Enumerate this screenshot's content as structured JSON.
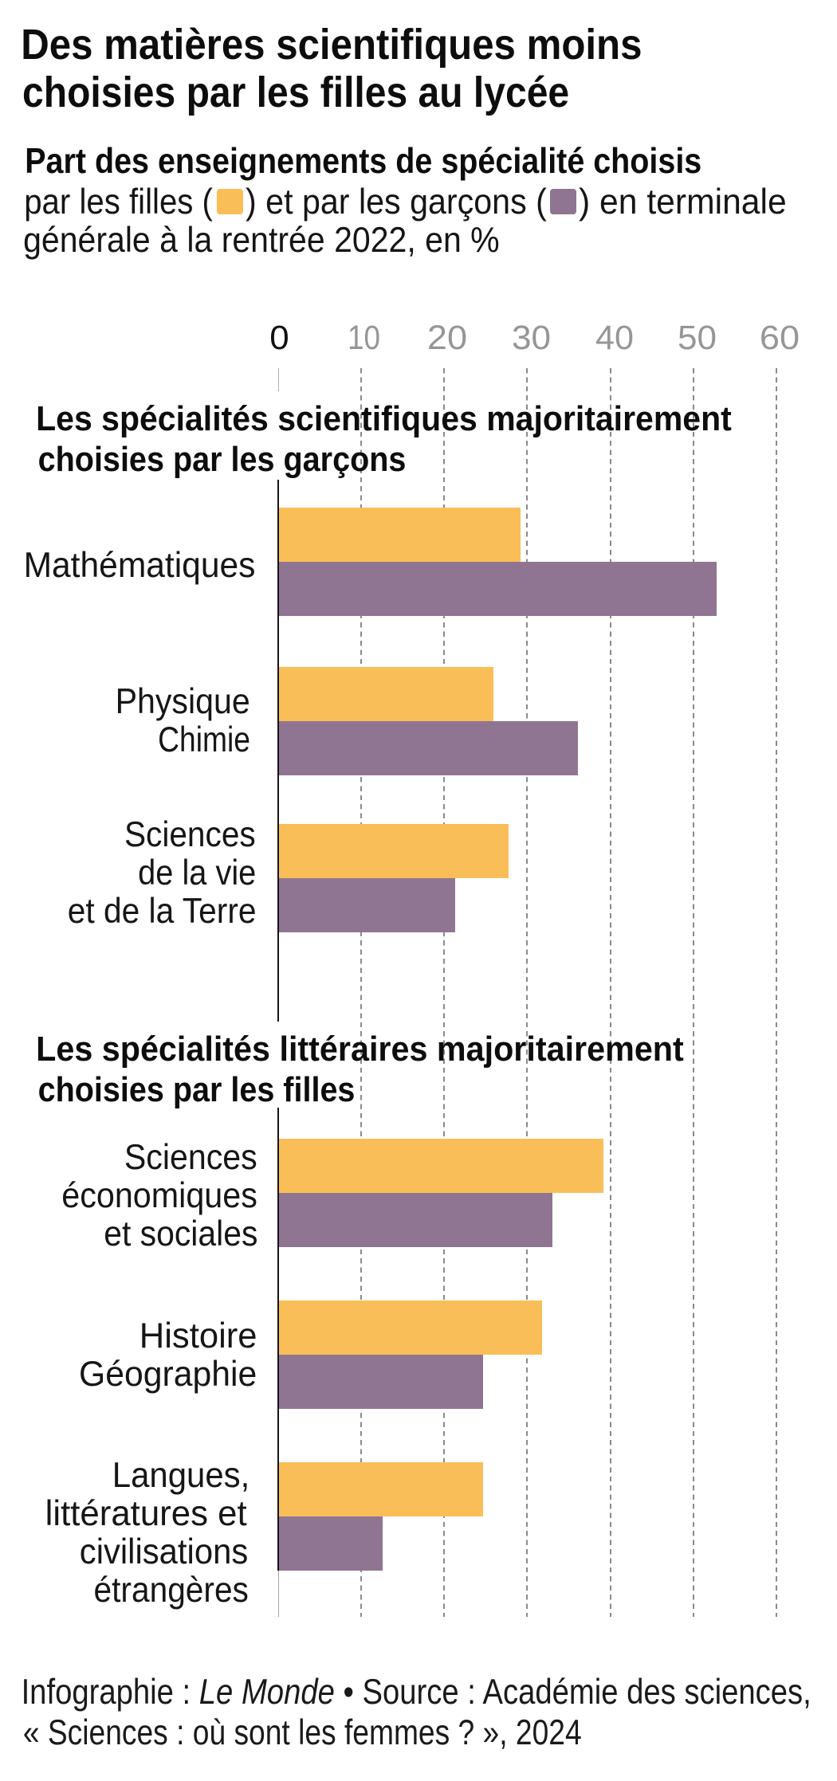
{
  "title": {
    "lines": [
      "Des matières scientifiques moins",
      "choisies par les filles au lycée"
    ]
  },
  "subtitle": {
    "line1": "Part des enseignements de spécialité choisis",
    "line2_part1": "par les filles (",
    "line2_part2": ") et par les garçons (",
    "line2_part3": ") en terminale",
    "line3": "générale à la rentrée 2022, en %",
    "legend": [
      {
        "name": "filles",
        "color": "#FABE58"
      },
      {
        "name": "garçons",
        "color": "#907592"
      }
    ]
  },
  "chart_data": {
    "type": "bar",
    "orientation": "horizontal",
    "unit": "%",
    "title": "Des matières scientifiques moins choisies par les filles au lycée",
    "subtitle": "Part des enseignements de spécialité choisis par les filles et par les garçons en terminale générale à la rentrée 2022, en %",
    "x_ticks": [
      0,
      10,
      20,
      30,
      40,
      50,
      60
    ],
    "xlim": [
      0,
      63
    ],
    "grid": true,
    "legend_position": "in-subtitle",
    "series_names": [
      "filles",
      "garçons"
    ],
    "colors": {
      "filles": "#FABE58",
      "garçons": "#907592"
    },
    "sections": [
      {
        "header": "Les spécialités scientifiques majoritairement choisies par les garçons",
        "header_lines": [
          "Les spécialités scientifiques majoritairement",
          "choisies par les garçons"
        ],
        "rows": [
          {
            "label": "Mathématiques",
            "label_lines": [
              "Mathématiques"
            ],
            "filles": 29.2,
            "garcons": 52.8
          },
          {
            "label": "Physique Chimie",
            "label_lines": [
              "Physique",
              "Chimie"
            ],
            "filles": 25.9,
            "garcons": 36.1
          },
          {
            "label": "Sciences de la vie et de la Terre",
            "label_lines": [
              "Sciences",
              "de la vie",
              "et de la Terre"
            ],
            "filles": 27.8,
            "garcons": 21.3
          }
        ]
      },
      {
        "header": "Les spécialités littéraires majoritairement choisies par les filles",
        "header_lines": [
          "Les spécialités littéraires majoritairement",
          "choisies par les filles"
        ],
        "rows": [
          {
            "label": "Sciences économiques et sociales",
            "label_lines": [
              "Sciences",
              "économiques",
              "et sociales"
            ],
            "filles": 39.2,
            "garcons": 33.0
          },
          {
            "label": "Histoire Géographie",
            "label_lines": [
              "Histoire",
              "Géographie"
            ],
            "filles": 31.8,
            "garcons": 24.7
          },
          {
            "label": "Langues, littératures et civilisations étrangères",
            "label_lines": [
              "Langues,",
              "littératures et",
              "civilisations",
              "étrangères"
            ],
            "filles": 24.7,
            "garcons": 12.6
          }
        ]
      }
    ]
  },
  "footer": {
    "line1_part1": "Infographie : ",
    "line1_brand": "Le Monde",
    "line1_part2": " • Source : Académie des sciences,",
    "line2": "« Sciences : où sont les femmes ? », 2024"
  }
}
